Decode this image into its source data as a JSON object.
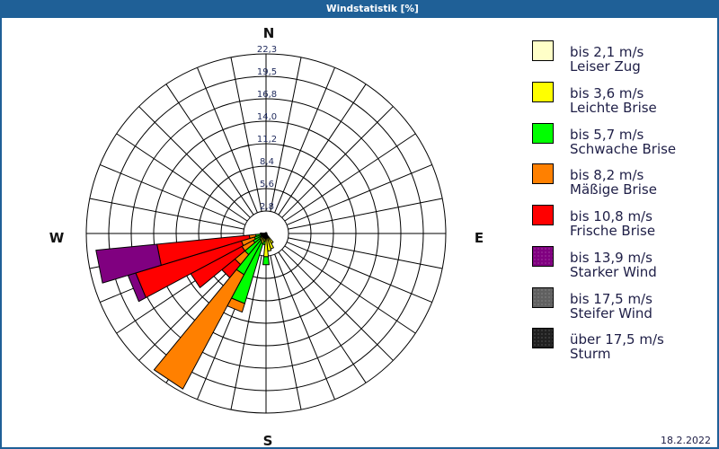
{
  "window": {
    "title": "Windstatistik [%]"
  },
  "compass": {
    "n": "N",
    "e": "E",
    "s": "S",
    "w": "W"
  },
  "legend": {
    "items": [
      {
        "range": "bis 2,1 m/s",
        "name": "Leiser Zug",
        "color": "#ffffc8",
        "dotted": false
      },
      {
        "range": "bis 3,6 m/s",
        "name": "Leichte Brise",
        "color": "#ffff00",
        "dotted": false
      },
      {
        "range": "bis 5,7 m/s",
        "name": "Schwache Brise",
        "color": "#00ff00",
        "dotted": false
      },
      {
        "range": "bis 8,2 m/s",
        "name": "Mäßige Brise",
        "color": "#ff8000",
        "dotted": false
      },
      {
        "range": "bis 10,8 m/s",
        "name": "Frische Brise",
        "color": "#ff0000",
        "dotted": false
      },
      {
        "range": "bis 13,9 m/s",
        "name": "Starker Wind",
        "color": "#800080",
        "dotted": true
      },
      {
        "range": "bis 17,5 m/s",
        "name": "Steifer Wind",
        "color": "#606060",
        "dotted": true
      },
      {
        "range": "über 17,5 m/s",
        "name": "Sturm",
        "color": "#202020",
        "dotted": true
      }
    ]
  },
  "footer": {
    "date": "18.2.2022"
  },
  "chart_data": {
    "type": "bar",
    "polar": true,
    "stacked": true,
    "title": "Windstatistik [%]",
    "unit": "%",
    "grid": true,
    "legend_position": "right",
    "rmax": 22.3,
    "rings": [
      "2,8",
      "5,6",
      "8,4",
      "11,2",
      "14,0",
      "16,8",
      "19,5",
      "22,3"
    ],
    "compass_labels": [
      "N",
      "E",
      "S",
      "W"
    ],
    "directions": [
      0,
      11.25,
      22.5,
      33.75,
      45,
      56.25,
      67.5,
      78.75,
      90,
      101.25,
      112.5,
      123.75,
      135,
      146.25,
      157.5,
      168.75,
      180,
      191.25,
      202.5,
      213.75,
      225,
      236.25,
      247.5,
      258.75,
      270,
      281.25,
      292.5,
      303.75,
      315,
      326.25,
      337.5,
      348.75
    ],
    "series": [
      {
        "name": "Leiser Zug",
        "range": "bis 2,1 m/s",
        "color": "#ffffc8",
        "values": [
          0.1,
          0.1,
          0.1,
          0.1,
          0.1,
          0.1,
          0.1,
          0.1,
          0.1,
          0.1,
          0.1,
          0.1,
          0.1,
          0.2,
          0.2,
          0.2,
          0.3,
          0.2,
          0.3,
          0.3,
          0.3,
          0.2,
          0.2,
          0.2,
          0.1,
          0.1,
          0.1,
          0.1,
          0.1,
          0.1,
          0.1,
          0.1
        ]
      },
      {
        "name": "Leichte Brise",
        "range": "bis 3,6 m/s",
        "color": "#ffff00",
        "values": [
          0,
          0,
          0,
          0,
          0,
          0,
          0,
          0,
          0,
          0,
          0,
          0,
          0.1,
          1.2,
          1.8,
          2.0,
          2.6,
          0.8,
          1.0,
          0.8,
          0.7,
          0.6,
          0.5,
          0.4,
          0.2,
          0.1,
          0,
          0,
          0,
          0,
          0,
          0
        ]
      },
      {
        "name": "Schwache Brise",
        "range": "bis 5,7 m/s",
        "color": "#00ff00",
        "values": [
          0,
          0,
          0,
          0,
          0,
          0,
          0,
          0,
          0,
          0,
          0,
          0,
          0,
          0,
          0,
          0,
          1.0,
          0.4,
          7.8,
          4.7,
          2.4,
          1.0,
          0.8,
          0.7,
          0.2,
          0,
          0,
          0,
          0,
          0,
          0,
          0
        ]
      },
      {
        "name": "Mäßige Brise",
        "range": "bis 8,2 m/s",
        "color": "#ff8000",
        "values": [
          0,
          0,
          0,
          0,
          0,
          0,
          0,
          0,
          0,
          0,
          0,
          0,
          0,
          0,
          0,
          0,
          0,
          0,
          1.1,
          16.1,
          1.6,
          1.6,
          1.7,
          0.8,
          0.2,
          0,
          0,
          0,
          0,
          0,
          0,
          0
        ]
      },
      {
        "name": "Frische Brise",
        "range": "bis 10,8 m/s",
        "color": "#ff0000",
        "values": [
          0,
          0,
          0,
          0,
          0,
          0,
          0,
          0,
          0,
          0,
          0,
          0,
          0,
          0,
          0,
          0,
          0,
          0,
          0,
          0,
          2.1,
          7.2,
          13.7,
          11.5,
          0,
          0,
          0,
          0,
          0,
          0,
          0,
          0
        ]
      },
      {
        "name": "Starker Wind",
        "range": "bis 13,9 m/s",
        "color": "#800080",
        "values": [
          0,
          0,
          0,
          0,
          0,
          0,
          0,
          0,
          0,
          0,
          0,
          0,
          0,
          0,
          0,
          0,
          0,
          0,
          0,
          0,
          0,
          0,
          1.0,
          7.6,
          0,
          0,
          0,
          0,
          0,
          0,
          0,
          0
        ]
      },
      {
        "name": "Steifer Wind",
        "range": "bis 17,5 m/s",
        "color": "#606060",
        "values": [
          0,
          0,
          0,
          0,
          0,
          0,
          0,
          0,
          0,
          0,
          0,
          0,
          0,
          0,
          0,
          0,
          0,
          0,
          0,
          0,
          0,
          0,
          0,
          0,
          0,
          0,
          0,
          0,
          0,
          0,
          0,
          0
        ]
      },
      {
        "name": "Sturm",
        "range": "über 17,5 m/s",
        "color": "#202020",
        "values": [
          0,
          0,
          0,
          0,
          0,
          0,
          0,
          0,
          0,
          0,
          0,
          0,
          0,
          0,
          0,
          0,
          0,
          0,
          0,
          0,
          0,
          0,
          0,
          0,
          0,
          0,
          0,
          0,
          0,
          0,
          0,
          0
        ]
      }
    ]
  }
}
